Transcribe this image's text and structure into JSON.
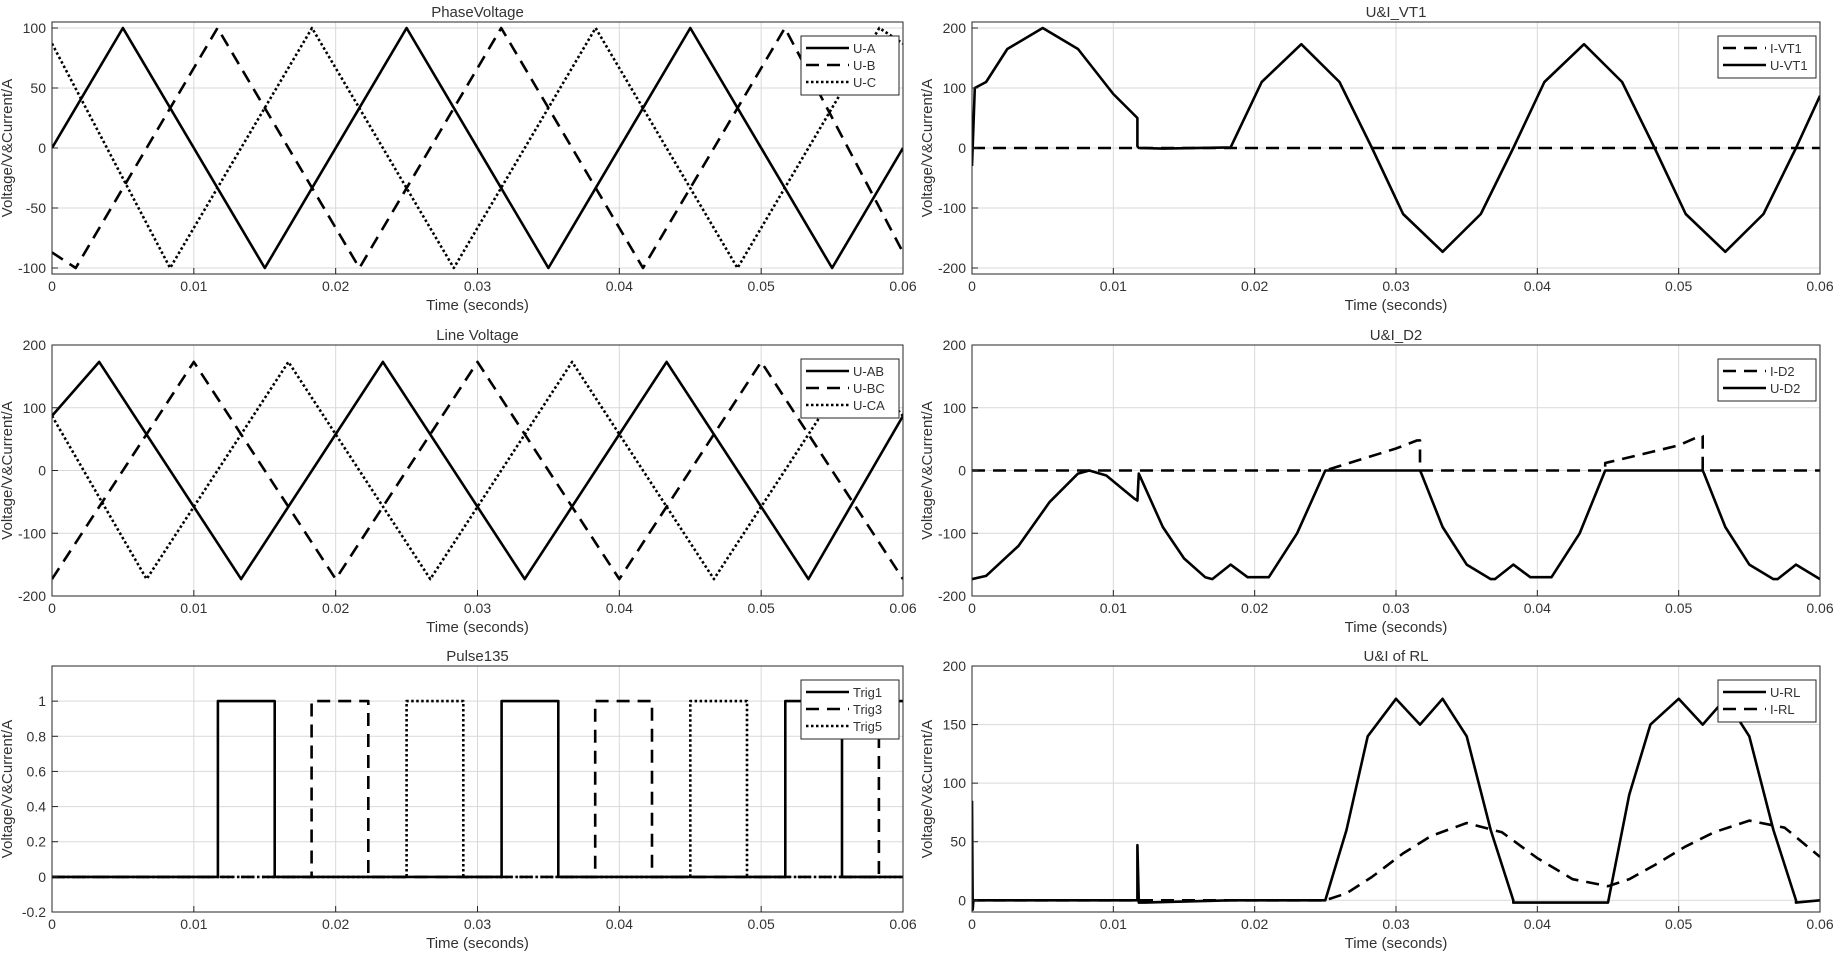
{
  "figure": {
    "style": {
      "axis": "#262626",
      "grid": "#d9d9d9",
      "line": "#000000",
      "text": "#333333"
    }
  },
  "chart_data": [
    {
      "type": "line",
      "title": "PhaseVoltage",
      "xlabel": "Time (seconds)",
      "ylabel": "Voltage/V&Current/A",
      "xlim": [
        0,
        0.06
      ],
      "ylim": [
        -105,
        105
      ],
      "xticks": [
        0,
        0.01,
        0.02,
        0.03,
        0.04,
        0.05,
        0.06
      ],
      "xtick_labels": [
        "0",
        "0.01",
        "0.02",
        "0.03",
        "0.04",
        "0.05",
        "0.06"
      ],
      "yticks": [
        -100,
        -50,
        0,
        50,
        100
      ],
      "ytick_labels": [
        "-100",
        "-50",
        "0",
        "50",
        "100"
      ],
      "legend": "top-right",
      "series": [
        {
          "name": "U-A",
          "style": "solid",
          "x": [
            0,
            0.005,
            0.015,
            0.025,
            0.035,
            0.045,
            0.055,
            0.06
          ],
          "y": [
            0,
            100,
            -100,
            100,
            -100,
            100,
            -100,
            0
          ]
        },
        {
          "name": "U-B",
          "style": "dashed",
          "x": [
            0,
            0.00167,
            0.01167,
            0.02167,
            0.03167,
            0.04167,
            0.05167,
            0.06
          ],
          "y": [
            -87,
            -100,
            100,
            -100,
            100,
            -100,
            100,
            -87
          ]
        },
        {
          "name": "U-C",
          "style": "dotted",
          "x": [
            0,
            0.00833,
            0.01833,
            0.02833,
            0.03833,
            0.04833,
            0.05833,
            0.06
          ],
          "y": [
            87,
            -100,
            100,
            -100,
            100,
            -100,
            100,
            87
          ]
        }
      ]
    },
    {
      "type": "line",
      "title": "U&I_VT1",
      "xlabel": "Time (seconds)",
      "ylabel": "Voltage/V&Current/A",
      "xlim": [
        0,
        0.06
      ],
      "ylim": [
        -210,
        210
      ],
      "xticks": [
        0,
        0.01,
        0.02,
        0.03,
        0.04,
        0.05,
        0.06
      ],
      "xtick_labels": [
        "0",
        "0.01",
        "0.02",
        "0.03",
        "0.04",
        "0.05",
        "0.06"
      ],
      "yticks": [
        -200,
        -100,
        0,
        100,
        200
      ],
      "ytick_labels": [
        "-200",
        "-100",
        "0",
        "100",
        "200"
      ],
      "legend": "top-right",
      "series": [
        {
          "name": "I-VT1",
          "style": "dashed",
          "x": [
            0,
            0.06
          ],
          "y": [
            0,
            0
          ]
        },
        {
          "name": "U-VT1",
          "style": "solid",
          "x": [
            0,
            0.0002,
            0.001,
            0.0025,
            0.005,
            0.0075,
            0.01,
            0.0117,
            0.0117,
            0.0118,
            0.0135,
            0.0183,
            0.0183,
            0.0205,
            0.0233,
            0.026,
            0.0283,
            0.0305,
            0.0333,
            0.036,
            0.0383,
            0.0405,
            0.0433,
            0.046,
            0.0483,
            0.0505,
            0.0533,
            0.056,
            0.0583,
            0.06
          ],
          "y": [
            -30,
            100,
            110,
            165,
            200,
            165,
            90,
            50,
            3,
            0,
            -1,
            1,
            1,
            110,
            173,
            110,
            0,
            -110,
            -173,
            -110,
            0,
            110,
            173,
            110,
            0,
            -110,
            -173,
            -110,
            0,
            87
          ]
        }
      ]
    },
    {
      "type": "line",
      "title": "Line Voltage",
      "xlabel": "Time (seconds)",
      "ylabel": "Voltage/V&Current/A",
      "xlim": [
        0,
        0.06
      ],
      "ylim": [
        -200,
        200
      ],
      "xticks": [
        0,
        0.01,
        0.02,
        0.03,
        0.04,
        0.05,
        0.06
      ],
      "xtick_labels": [
        "0",
        "0.01",
        "0.02",
        "0.03",
        "0.04",
        "0.05",
        "0.06"
      ],
      "yticks": [
        -200,
        -100,
        0,
        100,
        200
      ],
      "ytick_labels": [
        "-200",
        "-100",
        "0",
        "100",
        "200"
      ],
      "legend": "top-right",
      "series": [
        {
          "name": "U-AB",
          "style": "solid",
          "x": [
            0,
            0.00333,
            0.01333,
            0.02333,
            0.03333,
            0.04333,
            0.05333,
            0.06
          ],
          "y": [
            87,
            173,
            -173,
            173,
            -173,
            173,
            -173,
            87
          ]
        },
        {
          "name": "U-BC",
          "style": "dashed",
          "x": [
            0,
            0.01,
            0.02,
            0.03,
            0.04,
            0.05,
            0.06
          ],
          "y": [
            -173,
            173,
            -173,
            173,
            -173,
            173,
            -173
          ]
        },
        {
          "name": "U-CA",
          "style": "dotted",
          "x": [
            0,
            0.00667,
            0.01667,
            0.02667,
            0.03667,
            0.04667,
            0.05667,
            0.06
          ],
          "y": [
            87,
            -173,
            173,
            -173,
            173,
            -173,
            173,
            87
          ]
        }
      ]
    },
    {
      "type": "line",
      "title": "U&I_D2",
      "xlabel": "Time (seconds)",
      "ylabel": "Voltage/V&Current/A",
      "xlim": [
        0,
        0.06
      ],
      "ylim": [
        -200,
        200
      ],
      "xticks": [
        0,
        0.01,
        0.02,
        0.03,
        0.04,
        0.05,
        0.06
      ],
      "xtick_labels": [
        "0",
        "0.01",
        "0.02",
        "0.03",
        "0.04",
        "0.05",
        "0.06"
      ],
      "yticks": [
        -200,
        -100,
        0,
        100,
        200
      ],
      "ytick_labels": [
        "-200",
        "-100",
        "0",
        "100",
        "200"
      ],
      "legend": "top-right",
      "series": [
        {
          "name": "I-D2",
          "style": "dashed",
          "x": [
            0,
            0.025,
            0.03,
            0.0315,
            0.0317,
            0.0317,
            0.0448,
            0.0448,
            0.0452,
            0.05,
            0.0515,
            0.0517,
            0.0517,
            0.06
          ],
          "y": [
            0,
            0,
            35,
            48,
            48,
            0,
            0,
            12,
            14,
            40,
            55,
            55,
            0,
            0
          ]
        },
        {
          "name": "U-D2",
          "style": "solid",
          "x": [
            0,
            0.001,
            0.0033,
            0.0055,
            0.0075,
            0.0083,
            0.0095,
            0.0115,
            0.0117,
            0.0118,
            0.0135,
            0.015,
            0.0165,
            0.017,
            0.0183,
            0.0195,
            0.021,
            0.023,
            0.025,
            0.0317,
            0.0318,
            0.0333,
            0.035,
            0.0367,
            0.037,
            0.0383,
            0.0395,
            0.041,
            0.043,
            0.0448,
            0.0517,
            0.0518,
            0.0533,
            0.055,
            0.0567,
            0.057,
            0.0583,
            0.06
          ],
          "y": [
            -173,
            -168,
            -120,
            -50,
            -5,
            0,
            -8,
            -45,
            -48,
            -5,
            -90,
            -140,
            -170,
            -173,
            -150,
            -170,
            -170,
            -100,
            0,
            0,
            -5,
            -90,
            -150,
            -173,
            -173,
            -150,
            -170,
            -170,
            -100,
            0,
            0,
            -5,
            -90,
            -150,
            -173,
            -173,
            -150,
            -173
          ]
        }
      ]
    },
    {
      "type": "line",
      "title": "Pulse135",
      "xlabel": "Time (seconds)",
      "ylabel": "Voltage/V&Current/A",
      "xlim": [
        0,
        0.06
      ],
      "ylim": [
        -0.2,
        1.2
      ],
      "xticks": [
        0,
        0.01,
        0.02,
        0.03,
        0.04,
        0.05,
        0.06
      ],
      "xtick_labels": [
        "0",
        "0.01",
        "0.02",
        "0.03",
        "0.04",
        "0.05",
        "0.06"
      ],
      "yticks": [
        -0.2,
        0,
        0.2,
        0.4,
        0.6,
        0.8,
        1
      ],
      "ytick_labels": [
        "-0.2",
        "0",
        "0.2",
        "0.4",
        "0.6",
        "0.8",
        "1"
      ],
      "legend": "top-right",
      "series": [
        {
          "name": "Trig1",
          "style": "solid",
          "x": [
            0,
            0.0117,
            0.0117,
            0.0157,
            0.0157,
            0.0317,
            0.0317,
            0.0357,
            0.0357,
            0.0517,
            0.0517,
            0.0557,
            0.0557,
            0.06
          ],
          "y": [
            0,
            0,
            1,
            1,
            0,
            0,
            1,
            1,
            0,
            0,
            1,
            1,
            0,
            0
          ]
        },
        {
          "name": "Trig3",
          "style": "dashed",
          "x": [
            0,
            0.0183,
            0.0183,
            0.0223,
            0.0223,
            0.0383,
            0.0383,
            0.0423,
            0.0423,
            0.0583,
            0.0583,
            0.06
          ],
          "y": [
            0,
            0,
            1,
            1,
            0,
            0,
            1,
            1,
            0,
            0,
            1,
            1
          ]
        },
        {
          "name": "Trig5",
          "style": "dotted",
          "x": [
            0,
            0.025,
            0.025,
            0.029,
            0.029,
            0.045,
            0.045,
            0.049,
            0.049,
            0.06
          ],
          "y": [
            0,
            0,
            1,
            1,
            0,
            0,
            1,
            1,
            0,
            0
          ]
        }
      ]
    },
    {
      "type": "line",
      "title": "U&I of RL",
      "xlabel": "Time (seconds)",
      "ylabel": "Voltage/V&Current/A",
      "xlim": [
        0,
        0.06
      ],
      "ylim": [
        -10,
        200
      ],
      "xticks": [
        0,
        0.01,
        0.02,
        0.03,
        0.04,
        0.05,
        0.06
      ],
      "xtick_labels": [
        "0",
        "0.01",
        "0.02",
        "0.03",
        "0.04",
        "0.05",
        "0.06"
      ],
      "yticks": [
        0,
        50,
        100,
        150,
        200
      ],
      "ytick_labels": [
        "0",
        "50",
        "100",
        "150",
        "200"
      ],
      "legend": "top-right",
      "series": [
        {
          "name": "U-RL",
          "style": "solid",
          "x": [
            0,
            5e-05,
            0.0001,
            0.0002,
            0.0117,
            0.0117,
            0.0118,
            0.0122,
            0.0183,
            0.025,
            0.0265,
            0.028,
            0.03,
            0.0317,
            0.0333,
            0.035,
            0.0367,
            0.0383,
            0.0383,
            0.045,
            0.0465,
            0.048,
            0.05,
            0.0517,
            0.0533,
            0.055,
            0.0567,
            0.0583,
            0.0583,
            0.06
          ],
          "y": [
            85,
            -8,
            0,
            0,
            0,
            47,
            -2,
            -2,
            0,
            0,
            60,
            140,
            172,
            150,
            172,
            140,
            60,
            0,
            -2,
            -2,
            90,
            150,
            172,
            150,
            172,
            140,
            60,
            0,
            -2,
            0
          ]
        },
        {
          "name": "I-RL",
          "style": "dashed",
          "x": [
            0,
            0.025,
            0.0265,
            0.0283,
            0.0305,
            0.0325,
            0.035,
            0.0375,
            0.04,
            0.0425,
            0.045,
            0.0465,
            0.0483,
            0.0505,
            0.0525,
            0.055,
            0.0575,
            0.06
          ],
          "y": [
            0,
            0,
            6,
            20,
            40,
            55,
            66,
            58,
            36,
            18,
            12,
            18,
            30,
            46,
            58,
            68,
            62,
            37
          ]
        }
      ]
    }
  ]
}
